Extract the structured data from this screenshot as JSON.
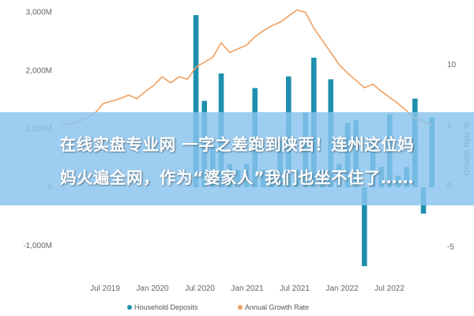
{
  "headline": {
    "line1": "在线实盘专业网 一字之差跑到陕西！连州这位妈",
    "line2": "妈火遍全网，作为“婆家人”我们也坐不住了……"
  },
  "chart_data": {
    "type": "bar",
    "title": "",
    "y_left": {
      "ticks": [
        3000,
        2000,
        1000,
        0,
        -1000
      ],
      "tick_labels": [
        "3,000M",
        "2,000M",
        "1,000M",
        "0",
        "-1,000M"
      ],
      "lim": [
        -1500,
        3100
      ]
    },
    "y_right": {
      "ticks": [
        10,
        5,
        0,
        -5
      ],
      "tick_labels": [
        "10",
        "5",
        "0",
        "-5"
      ],
      "label": "Growth Rate %",
      "lim": [
        -7.3,
        14.8
      ]
    },
    "x_tick_labels": [
      "Jul 2019",
      "Jan 2020",
      "Jul 2020",
      "Jan 2021",
      "Jul 2021",
      "Jan 2022",
      "Jul 2022"
    ],
    "series": [
      {
        "name": "Household Deposits",
        "type": "bar",
        "axis": "left",
        "color": "#1f8fae",
        "values": [
          0,
          0,
          0,
          0,
          0,
          0,
          0,
          0,
          0,
          0,
          0,
          0,
          0,
          0,
          0,
          0,
          2950,
          1480,
          700,
          1950,
          400,
          300,
          400,
          1700,
          300,
          300,
          800,
          1900,
          300,
          1280,
          2220,
          300,
          1850,
          400,
          1100,
          1150,
          -1350,
          800,
          350,
          1250,
          200,
          350,
          1520,
          -450,
          1200
        ]
      },
      {
        "name": "Annual Growth Rate",
        "type": "line",
        "axis": "right",
        "color": "#f0a060",
        "values": [
          5.0,
          5.1,
          5.3,
          5.6,
          6.0,
          6.8,
          7.0,
          7.2,
          7.5,
          7.2,
          7.8,
          8.3,
          9.0,
          8.5,
          9.0,
          8.8,
          9.8,
          10.2,
          10.6,
          11.8,
          11.0,
          11.3,
          11.6,
          12.3,
          12.8,
          13.2,
          13.5,
          14.0,
          14.5,
          14.3,
          13.0,
          12.0,
          11.0,
          10.0,
          9.3,
          8.7,
          8.1,
          8.4,
          7.8,
          7.3,
          6.8,
          6.2,
          5.6,
          5.3,
          5.1
        ]
      }
    ],
    "legend_position": "bottom",
    "grid": false
  }
}
